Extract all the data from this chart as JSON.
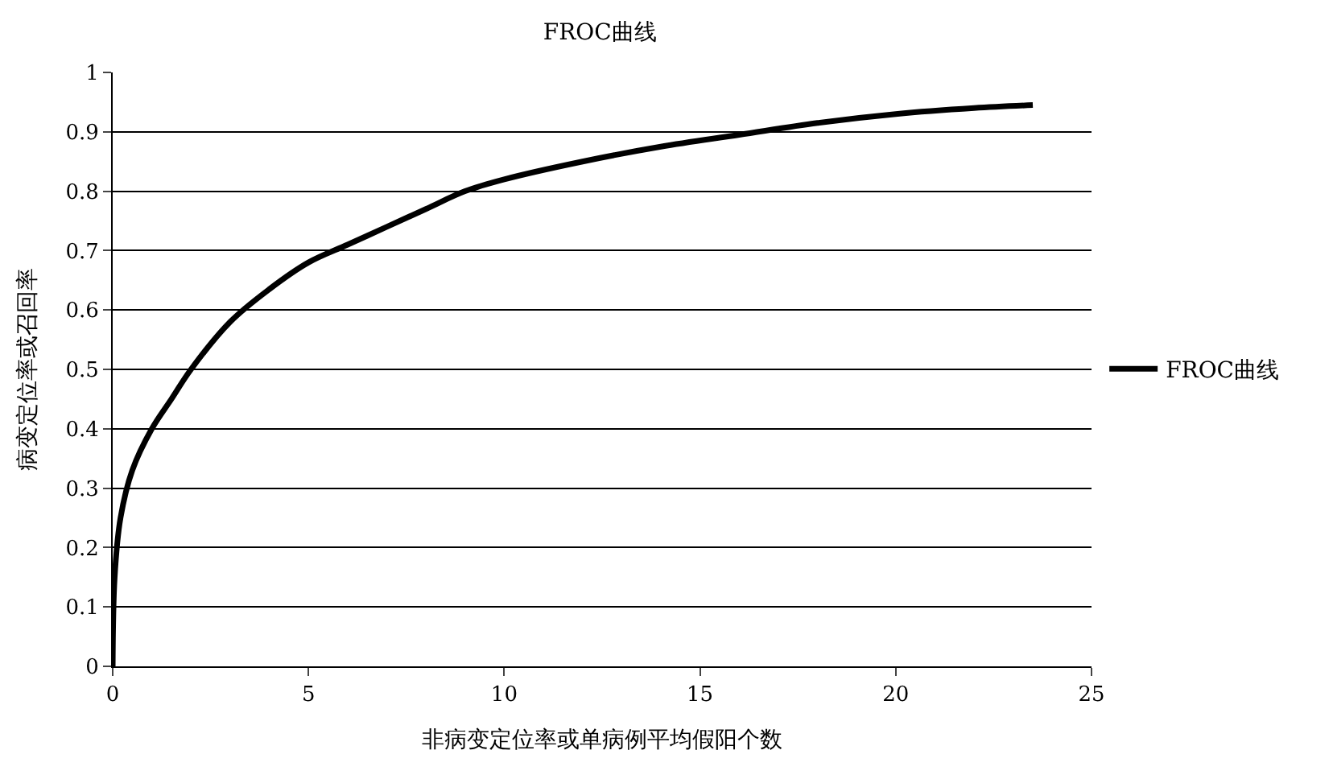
{
  "chart_data": {
    "type": "line",
    "title": "FROC曲线",
    "xlabel": "非病变定位率或单病例平均假阳个数",
    "ylabel": "病变定位率或召回率",
    "x": [
      0,
      0.05,
      0.2,
      0.5,
      1,
      1.5,
      2,
      3,
      4,
      5,
      6,
      7,
      8,
      9,
      10,
      12,
      14,
      16,
      18,
      20,
      22,
      23.5
    ],
    "series": [
      {
        "name": "FROC曲线",
        "color": "#000000",
        "values": [
          0,
          0.15,
          0.25,
          0.33,
          0.4,
          0.45,
          0.5,
          0.58,
          0.635,
          0.68,
          0.71,
          0.74,
          0.77,
          0.8,
          0.82,
          0.85,
          0.875,
          0.895,
          0.915,
          0.93,
          0.94,
          0.945
        ]
      }
    ],
    "xlim": [
      0,
      25
    ],
    "xticks": [
      0,
      5,
      10,
      15,
      20,
      25
    ],
    "ylim": [
      0,
      1
    ],
    "yticks": [
      0,
      0.1,
      0.2,
      0.3,
      0.4,
      0.5,
      0.6,
      0.7,
      0.8,
      0.9,
      1
    ],
    "grid": "y",
    "legend": "right",
    "marker": "none",
    "line_style": "solid"
  }
}
